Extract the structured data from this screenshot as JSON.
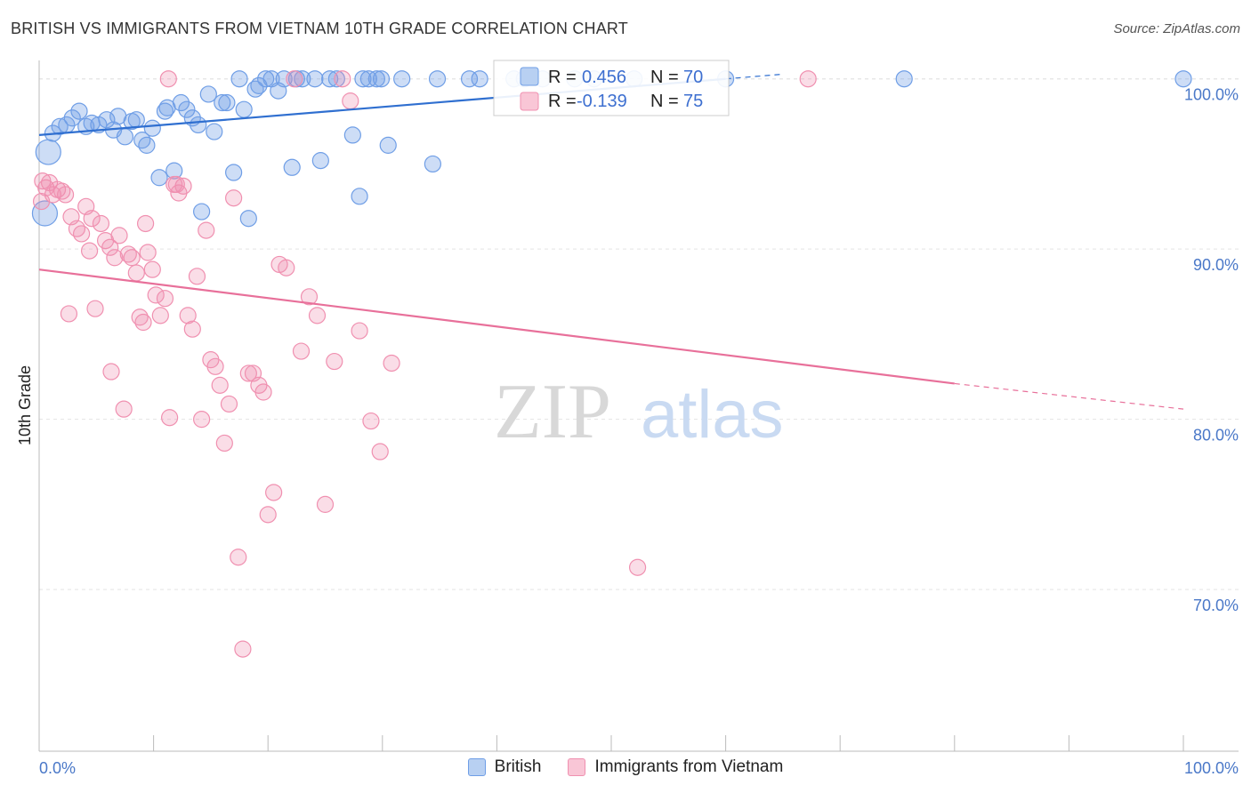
{
  "title": "BRITISH VS IMMIGRANTS FROM VIETNAM 10TH GRADE CORRELATION CHART",
  "source": "Source: ZipAtlas.com",
  "watermark": {
    "zip": "ZIP",
    "atlas": "atlas"
  },
  "legend": {
    "r_label": "R =",
    "n_label": "N =",
    "series": [
      {
        "name": "British",
        "r": "0.456",
        "n": "70"
      },
      {
        "name": "Immigrants from Vietnam",
        "r": "-0.139",
        "n": "75"
      }
    ]
  },
  "chart_data": {
    "type": "scatter",
    "title": "BRITISH VS IMMIGRANTS FROM VIETNAM 10TH GRADE CORRELATION CHART",
    "xlabel": "",
    "ylabel": "10th Grade",
    "xlim": [
      0,
      100
    ],
    "ylim": [
      60.5,
      101.5
    ],
    "x_tick_labels": [
      "0.0%",
      "100.0%"
    ],
    "y_ticks": [
      70,
      80,
      90,
      100
    ],
    "y_tick_labels": [
      "70.0%",
      "80.0%",
      "90.0%",
      "100.0%"
    ],
    "colors": {
      "British": "#6f9ee6",
      "Immigrants from Vietnam": "#f090b0",
      "british_line": "#2f6fd0",
      "vietnam_line": "#e8709a"
    },
    "series": [
      {
        "name": "British",
        "trend": {
          "x0": 0,
          "y0": 96.7,
          "x1": 60,
          "y1": 100.0
        },
        "points": [
          [
            0.5,
            92.1
          ],
          [
            0.8,
            95.7
          ],
          [
            1.2,
            96.8
          ],
          [
            1.8,
            97.2
          ],
          [
            2.4,
            97.3
          ],
          [
            2.9,
            97.7
          ],
          [
            3.5,
            98.1
          ],
          [
            4.1,
            97.2
          ],
          [
            4.6,
            97.4
          ],
          [
            5.2,
            97.3
          ],
          [
            5.9,
            97.6
          ],
          [
            6.5,
            97.0
          ],
          [
            6.9,
            97.8
          ],
          [
            7.5,
            96.6
          ],
          [
            8.1,
            97.5
          ],
          [
            8.5,
            97.6
          ],
          [
            9.0,
            96.4
          ],
          [
            9.4,
            96.1
          ],
          [
            9.9,
            97.1
          ],
          [
            10.5,
            94.2
          ],
          [
            11.0,
            98.1
          ],
          [
            11.2,
            98.3
          ],
          [
            11.8,
            94.6
          ],
          [
            12.4,
            98.6
          ],
          [
            12.9,
            98.2
          ],
          [
            13.4,
            97.7
          ],
          [
            13.9,
            97.3
          ],
          [
            14.2,
            92.2
          ],
          [
            14.8,
            99.1
          ],
          [
            15.3,
            96.9
          ],
          [
            16.0,
            98.6
          ],
          [
            16.4,
            98.6
          ],
          [
            17.0,
            94.5
          ],
          [
            17.5,
            100.0
          ],
          [
            17.9,
            98.2
          ],
          [
            18.3,
            91.8
          ],
          [
            18.9,
            99.4
          ],
          [
            19.2,
            99.6
          ],
          [
            19.8,
            100.0
          ],
          [
            20.3,
            100.0
          ],
          [
            20.9,
            99.3
          ],
          [
            21.4,
            100.0
          ],
          [
            22.1,
            94.8
          ],
          [
            22.5,
            100.0
          ],
          [
            23.0,
            100.0
          ],
          [
            24.1,
            100.0
          ],
          [
            24.6,
            95.2
          ],
          [
            25.4,
            100.0
          ],
          [
            26.0,
            100.0
          ],
          [
            27.4,
            96.7
          ],
          [
            28.0,
            93.1
          ],
          [
            28.3,
            100.0
          ],
          [
            28.8,
            100.0
          ],
          [
            29.5,
            100.0
          ],
          [
            29.9,
            100.0
          ],
          [
            30.5,
            96.1
          ],
          [
            31.7,
            100.0
          ],
          [
            34.4,
            95.0
          ],
          [
            34.8,
            100.0
          ],
          [
            37.6,
            100.0
          ],
          [
            38.5,
            100.0
          ],
          [
            41.5,
            100.0
          ],
          [
            42.4,
            100.0
          ],
          [
            44.0,
            100.0
          ],
          [
            46.8,
            100.0
          ],
          [
            48.5,
            100.0
          ],
          [
            52.0,
            100.0
          ],
          [
            60.0,
            100.0
          ],
          [
            75.6,
            100.0
          ],
          [
            100.0,
            100.0
          ]
        ]
      },
      {
        "name": "Immigrants from Vietnam",
        "trend": {
          "x0": 0,
          "y0": 88.8,
          "x1": 80,
          "y1": 82.1,
          "dash_to_x": 100,
          "dash_to_y": 80.6
        },
        "points": [
          [
            0.3,
            94.0
          ],
          [
            0.6,
            93.6
          ],
          [
            0.9,
            93.9
          ],
          [
            1.2,
            93.2
          ],
          [
            1.6,
            93.5
          ],
          [
            2.0,
            93.4
          ],
          [
            2.3,
            93.2
          ],
          [
            2.8,
            91.9
          ],
          [
            3.3,
            91.2
          ],
          [
            3.7,
            90.9
          ],
          [
            4.1,
            92.5
          ],
          [
            4.6,
            91.8
          ],
          [
            4.9,
            86.5
          ],
          [
            5.4,
            91.5
          ],
          [
            5.8,
            90.5
          ],
          [
            6.2,
            90.1
          ],
          [
            6.6,
            89.5
          ],
          [
            7.0,
            90.8
          ],
          [
            7.4,
            80.6
          ],
          [
            7.8,
            89.7
          ],
          [
            8.1,
            89.5
          ],
          [
            8.5,
            88.6
          ],
          [
            8.8,
            86.0
          ],
          [
            9.1,
            85.7
          ],
          [
            9.5,
            89.8
          ],
          [
            9.9,
            88.8
          ],
          [
            10.2,
            87.3
          ],
          [
            10.6,
            86.1
          ],
          [
            11.0,
            87.1
          ],
          [
            11.4,
            80.1
          ],
          [
            11.8,
            93.8
          ],
          [
            12.2,
            93.3
          ],
          [
            12.6,
            93.7
          ],
          [
            13.0,
            86.1
          ],
          [
            13.4,
            85.3
          ],
          [
            13.8,
            88.4
          ],
          [
            14.2,
            80.0
          ],
          [
            14.6,
            91.1
          ],
          [
            15.0,
            83.5
          ],
          [
            15.4,
            83.1
          ],
          [
            15.8,
            82.0
          ],
          [
            16.2,
            78.6
          ],
          [
            16.6,
            80.9
          ],
          [
            17.0,
            93.0
          ],
          [
            17.4,
            71.9
          ],
          [
            17.8,
            66.5
          ],
          [
            18.3,
            82.7
          ],
          [
            18.7,
            82.7
          ],
          [
            19.2,
            82.0
          ],
          [
            19.6,
            81.6
          ],
          [
            20.0,
            74.4
          ],
          [
            20.5,
            75.7
          ],
          [
            21.0,
            89.1
          ],
          [
            21.6,
            88.9
          ],
          [
            22.3,
            100.0
          ],
          [
            22.9,
            84.0
          ],
          [
            23.6,
            87.2
          ],
          [
            24.3,
            86.1
          ],
          [
            25.0,
            75.0
          ],
          [
            25.8,
            83.4
          ],
          [
            26.5,
            100.0
          ],
          [
            27.2,
            98.7
          ],
          [
            28.0,
            85.2
          ],
          [
            29.0,
            79.9
          ],
          [
            29.8,
            78.1
          ],
          [
            30.8,
            83.3
          ],
          [
            11.3,
            100.0
          ],
          [
            12.0,
            93.8
          ],
          [
            9.3,
            91.5
          ],
          [
            4.4,
            89.9
          ],
          [
            6.3,
            82.8
          ],
          [
            52.3,
            71.3
          ],
          [
            67.2,
            100.0
          ],
          [
            0.2,
            92.8
          ],
          [
            2.6,
            86.2
          ]
        ]
      }
    ]
  }
}
